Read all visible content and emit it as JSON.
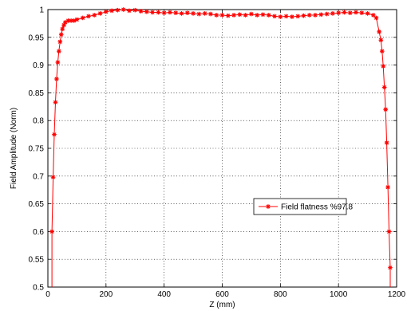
{
  "chart_data": {
    "type": "line",
    "title": "",
    "xlabel": "Z (mm)",
    "ylabel": "Field Amplitude (Norm)",
    "xlim": [
      0,
      1200
    ],
    "ylim": [
      0.5,
      1.0
    ],
    "xticks": [
      0,
      200,
      400,
      600,
      800,
      1000,
      1200
    ],
    "yticks": [
      0.5,
      0.55,
      0.6,
      0.65,
      0.7,
      0.75,
      0.8,
      0.85,
      0.9,
      0.95,
      1.0
    ],
    "xtick_labels": [
      "0",
      "200",
      "400",
      "600",
      "800",
      "1000",
      "1200"
    ],
    "ytick_labels": [
      "0.5",
      "0.55",
      "0.6",
      "0.65",
      "0.7",
      "0.75",
      "0.8",
      "0.85",
      "0.9",
      "0.95",
      "1"
    ],
    "grid": true,
    "legend_position": "right-middle",
    "series": [
      {
        "name": "Field flatness %97.8",
        "color": "#ff0000",
        "marker": "asterisk",
        "x": [
          14,
          18,
          22,
          26,
          30,
          34,
          38,
          42,
          46,
          50,
          55,
          60,
          70,
          80,
          90,
          100,
          120,
          140,
          160,
          180,
          200,
          220,
          240,
          260,
          280,
          300,
          320,
          340,
          360,
          380,
          400,
          420,
          440,
          460,
          480,
          500,
          520,
          540,
          560,
          580,
          600,
          620,
          640,
          660,
          680,
          700,
          720,
          740,
          760,
          780,
          800,
          820,
          840,
          860,
          880,
          900,
          920,
          940,
          960,
          980,
          1000,
          1020,
          1040,
          1060,
          1080,
          1100,
          1120,
          1130,
          1140,
          1146,
          1150,
          1154,
          1158,
          1162,
          1166,
          1170,
          1174,
          1178
        ],
        "y": [
          0.6,
          0.698,
          0.775,
          0.833,
          0.875,
          0.905,
          0.925,
          0.942,
          0.955,
          0.965,
          0.972,
          0.977,
          0.98,
          0.98,
          0.98,
          0.982,
          0.985,
          0.988,
          0.99,
          0.993,
          0.996,
          0.998,
          0.999,
          1.0,
          0.998,
          0.999,
          0.997,
          0.996,
          0.995,
          0.995,
          0.994,
          0.995,
          0.994,
          0.993,
          0.994,
          0.993,
          0.992,
          0.993,
          0.992,
          0.99,
          0.99,
          0.989,
          0.99,
          0.991,
          0.99,
          0.992,
          0.99,
          0.991,
          0.99,
          0.988,
          0.987,
          0.988,
          0.987,
          0.988,
          0.989,
          0.99,
          0.99,
          0.991,
          0.992,
          0.993,
          0.994,
          0.995,
          0.994,
          0.995,
          0.994,
          0.993,
          0.99,
          0.985,
          0.96,
          0.945,
          0.925,
          0.898,
          0.86,
          0.82,
          0.76,
          0.68,
          0.6,
          0.535
        ]
      }
    ]
  }
}
